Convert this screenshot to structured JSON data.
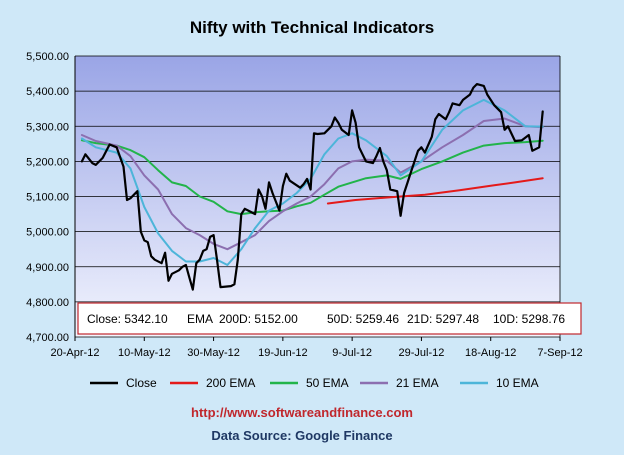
{
  "colors": {
    "background": "#cfe8f8",
    "plot_top": "#9aa5e6",
    "plot_bottom": "#f3f5fe",
    "grid": "#000000",
    "close": "#000000",
    "ema200": "#e41a1a",
    "ema50": "#22b44a",
    "ema21": "#8c6fb0",
    "ema10": "#4db5d9",
    "info_border": "#c0272d",
    "url": "#c0272d",
    "source": "#1f3864"
  },
  "footer": {
    "url": "http://www.softwareandfinance.com",
    "source": "Data Source: Google Finance"
  },
  "info_box": {
    "close": "Close: 5342.10",
    "ema200": "EMA  200D: 5152.00",
    "ema50": "50D: 5259.46",
    "ema21": "21D: 5297.48",
    "ema10": "10D: 5298.76"
  },
  "chart_data": {
    "type": "line",
    "title": "Nifty with Technical Indicators",
    "xlabel": "",
    "ylabel": "",
    "ylim": [
      4700,
      5500
    ],
    "yticks": [
      "4,700.00",
      "4,800.00",
      "4,900.00",
      "5,000.00",
      "5,100.00",
      "5,200.00",
      "5,300.00",
      "5,400.00",
      "5,500.00"
    ],
    "xlim": [
      "2012-04-20",
      "2012-09-07"
    ],
    "xticks": [
      "20-Apr-12",
      "10-May-12",
      "30-May-12",
      "19-Jun-12",
      "9-Jul-12",
      "29-Jul-12",
      "18-Aug-12",
      "7-Sep-12"
    ],
    "grid": true,
    "legend_position": "bottom",
    "series": [
      {
        "name": "Close",
        "color": "#000000",
        "points": [
          [
            "2012-04-22",
            5200
          ],
          [
            "2012-04-23",
            5220
          ],
          [
            "2012-04-25",
            5195
          ],
          [
            "2012-04-26",
            5190
          ],
          [
            "2012-04-28",
            5210
          ],
          [
            "2012-04-30",
            5248
          ],
          [
            "2012-05-02",
            5240
          ],
          [
            "2012-05-04",
            5185
          ],
          [
            "2012-05-05",
            5090
          ],
          [
            "2012-05-06",
            5095
          ],
          [
            "2012-05-08",
            5115
          ],
          [
            "2012-05-09",
            5000
          ],
          [
            "2012-05-10",
            4975
          ],
          [
            "2012-05-11",
            4970
          ],
          [
            "2012-05-12",
            4930
          ],
          [
            "2012-05-13",
            4920
          ],
          [
            "2012-05-15",
            4910
          ],
          [
            "2012-05-16",
            4940
          ],
          [
            "2012-05-17",
            4860
          ],
          [
            "2012-05-18",
            4880
          ],
          [
            "2012-05-20",
            4890
          ],
          [
            "2012-05-21",
            4900
          ],
          [
            "2012-05-22",
            4905
          ],
          [
            "2012-05-23",
            4870
          ],
          [
            "2012-05-24",
            4835
          ],
          [
            "2012-05-25",
            4910
          ],
          [
            "2012-05-26",
            4920
          ],
          [
            "2012-05-27",
            4945
          ],
          [
            "2012-05-28",
            4950
          ],
          [
            "2012-05-29",
            4985
          ],
          [
            "2012-05-30",
            4990
          ],
          [
            "2012-05-31",
            4920
          ],
          [
            "2012-06-01",
            4842
          ],
          [
            "2012-06-04",
            4845
          ],
          [
            "2012-06-05",
            4850
          ],
          [
            "2012-06-06",
            4920
          ],
          [
            "2012-06-07",
            5050
          ],
          [
            "2012-06-08",
            5065
          ],
          [
            "2012-06-11",
            5050
          ],
          [
            "2012-06-12",
            5120
          ],
          [
            "2012-06-13",
            5100
          ],
          [
            "2012-06-14",
            5065
          ],
          [
            "2012-06-15",
            5140
          ],
          [
            "2012-06-16",
            5110
          ],
          [
            "2012-06-18",
            5060
          ],
          [
            "2012-06-19",
            5130
          ],
          [
            "2012-06-20",
            5165
          ],
          [
            "2012-06-21",
            5145
          ],
          [
            "2012-06-24",
            5125
          ],
          [
            "2012-06-25",
            5135
          ],
          [
            "2012-06-26",
            5150
          ],
          [
            "2012-06-27",
            5120
          ],
          [
            "2012-06-28",
            5280
          ],
          [
            "2012-06-29",
            5278
          ],
          [
            "2012-07-01",
            5280
          ],
          [
            "2012-07-02",
            5290
          ],
          [
            "2012-07-03",
            5300
          ],
          [
            "2012-07-04",
            5325
          ],
          [
            "2012-07-05",
            5310
          ],
          [
            "2012-07-06",
            5290
          ],
          [
            "2012-07-08",
            5275
          ],
          [
            "2012-07-09",
            5345
          ],
          [
            "2012-07-10",
            5310
          ],
          [
            "2012-07-11",
            5240
          ],
          [
            "2012-07-12",
            5220
          ],
          [
            "2012-07-13",
            5200
          ],
          [
            "2012-07-15",
            5195
          ],
          [
            "2012-07-16",
            5215
          ],
          [
            "2012-07-17",
            5238
          ],
          [
            "2012-07-18",
            5200
          ],
          [
            "2012-07-19",
            5175
          ],
          [
            "2012-07-20",
            5120
          ],
          [
            "2012-07-22",
            5115
          ],
          [
            "2012-07-23",
            5045
          ],
          [
            "2012-07-24",
            5110
          ],
          [
            "2012-07-25",
            5140
          ],
          [
            "2012-07-26",
            5170
          ],
          [
            "2012-07-27",
            5200
          ],
          [
            "2012-07-28",
            5230
          ],
          [
            "2012-07-29",
            5240
          ],
          [
            "2012-07-30",
            5225
          ],
          [
            "2012-08-01",
            5270
          ],
          [
            "2012-08-02",
            5320
          ],
          [
            "2012-08-03",
            5335
          ],
          [
            "2012-08-05",
            5320
          ],
          [
            "2012-08-06",
            5340
          ],
          [
            "2012-08-07",
            5365
          ],
          [
            "2012-08-09",
            5360
          ],
          [
            "2012-08-10",
            5375
          ],
          [
            "2012-08-12",
            5390
          ],
          [
            "2012-08-13",
            5410
          ],
          [
            "2012-08-14",
            5420
          ],
          [
            "2012-08-16",
            5415
          ],
          [
            "2012-08-17",
            5390
          ],
          [
            "2012-08-19",
            5360
          ],
          [
            "2012-08-21",
            5340
          ],
          [
            "2012-08-22",
            5290
          ],
          [
            "2012-08-23",
            5300
          ],
          [
            "2012-08-25",
            5258
          ],
          [
            "2012-08-27",
            5260
          ],
          [
            "2012-08-29",
            5275
          ],
          [
            "2012-08-30",
            5230
          ],
          [
            "2012-09-01",
            5240
          ],
          [
            "2012-09-02",
            5342
          ]
        ]
      },
      {
        "name": "200 EMA",
        "color": "#e41a1a",
        "points": [
          [
            "2012-07-02",
            5080
          ],
          [
            "2012-07-10",
            5090
          ],
          [
            "2012-07-20",
            5098
          ],
          [
            "2012-07-30",
            5105
          ],
          [
            "2012-08-09",
            5118
          ],
          [
            "2012-08-19",
            5132
          ],
          [
            "2012-08-25",
            5140
          ],
          [
            "2012-09-02",
            5152
          ]
        ]
      },
      {
        "name": "50 EMA",
        "color": "#22b44a",
        "points": [
          [
            "2012-04-22",
            5260
          ],
          [
            "2012-04-26",
            5252
          ],
          [
            "2012-05-02",
            5245
          ],
          [
            "2012-05-06",
            5232
          ],
          [
            "2012-05-10",
            5212
          ],
          [
            "2012-05-14",
            5175
          ],
          [
            "2012-05-18",
            5140
          ],
          [
            "2012-05-22",
            5130
          ],
          [
            "2012-05-26",
            5100
          ],
          [
            "2012-05-30",
            5085
          ],
          [
            "2012-06-03",
            5058
          ],
          [
            "2012-06-07",
            5050
          ],
          [
            "2012-06-11",
            5055
          ],
          [
            "2012-06-15",
            5058
          ],
          [
            "2012-06-19",
            5060
          ],
          [
            "2012-06-23",
            5072
          ],
          [
            "2012-06-27",
            5082
          ],
          [
            "2012-07-01",
            5105
          ],
          [
            "2012-07-05",
            5128
          ],
          [
            "2012-07-09",
            5140
          ],
          [
            "2012-07-13",
            5152
          ],
          [
            "2012-07-19",
            5160
          ],
          [
            "2012-07-23",
            5150
          ],
          [
            "2012-07-29",
            5178
          ],
          [
            "2012-08-04",
            5200
          ],
          [
            "2012-08-10",
            5225
          ],
          [
            "2012-08-16",
            5245
          ],
          [
            "2012-08-22",
            5252
          ],
          [
            "2012-08-28",
            5255
          ],
          [
            "2012-09-02",
            5259
          ]
        ]
      },
      {
        "name": "21 EMA",
        "color": "#8c6fb0",
        "points": [
          [
            "2012-04-22",
            5275
          ],
          [
            "2012-04-26",
            5258
          ],
          [
            "2012-05-02",
            5245
          ],
          [
            "2012-05-06",
            5215
          ],
          [
            "2012-05-10",
            5160
          ],
          [
            "2012-05-14",
            5120
          ],
          [
            "2012-05-18",
            5050
          ],
          [
            "2012-05-22",
            5010
          ],
          [
            "2012-05-26",
            4990
          ],
          [
            "2012-05-30",
            4965
          ],
          [
            "2012-06-03",
            4950
          ],
          [
            "2012-06-07",
            4970
          ],
          [
            "2012-06-11",
            4990
          ],
          [
            "2012-06-15",
            5030
          ],
          [
            "2012-06-19",
            5058
          ],
          [
            "2012-06-23",
            5080
          ],
          [
            "2012-06-27",
            5100
          ],
          [
            "2012-07-01",
            5135
          ],
          [
            "2012-07-05",
            5180
          ],
          [
            "2012-07-09",
            5200
          ],
          [
            "2012-07-13",
            5205
          ],
          [
            "2012-07-19",
            5202
          ],
          [
            "2012-07-23",
            5168
          ],
          [
            "2012-07-29",
            5200
          ],
          [
            "2012-08-04",
            5240
          ],
          [
            "2012-08-10",
            5275
          ],
          [
            "2012-08-16",
            5315
          ],
          [
            "2012-08-22",
            5322
          ],
          [
            "2012-08-28",
            5300
          ],
          [
            "2012-09-02",
            5297
          ]
        ]
      },
      {
        "name": "10 EMA",
        "color": "#4db5d9",
        "points": [
          [
            "2012-04-22",
            5265
          ],
          [
            "2012-04-26",
            5240
          ],
          [
            "2012-05-02",
            5225
          ],
          [
            "2012-05-06",
            5180
          ],
          [
            "2012-05-10",
            5070
          ],
          [
            "2012-05-14",
            4995
          ],
          [
            "2012-05-18",
            4945
          ],
          [
            "2012-05-22",
            4915
          ],
          [
            "2012-05-26",
            4915
          ],
          [
            "2012-05-30",
            4925
          ],
          [
            "2012-06-03",
            4905
          ],
          [
            "2012-06-07",
            4950
          ],
          [
            "2012-06-11",
            5010
          ],
          [
            "2012-06-15",
            5060
          ],
          [
            "2012-06-19",
            5080
          ],
          [
            "2012-06-23",
            5110
          ],
          [
            "2012-06-27",
            5150
          ],
          [
            "2012-07-01",
            5220
          ],
          [
            "2012-07-05",
            5265
          ],
          [
            "2012-07-09",
            5280
          ],
          [
            "2012-07-13",
            5260
          ],
          [
            "2012-07-19",
            5215
          ],
          [
            "2012-07-23",
            5160
          ],
          [
            "2012-07-29",
            5200
          ],
          [
            "2012-08-04",
            5290
          ],
          [
            "2012-08-10",
            5345
          ],
          [
            "2012-08-16",
            5375
          ],
          [
            "2012-08-22",
            5345
          ],
          [
            "2012-08-28",
            5300
          ],
          [
            "2012-09-02",
            5299
          ]
        ]
      }
    ]
  }
}
